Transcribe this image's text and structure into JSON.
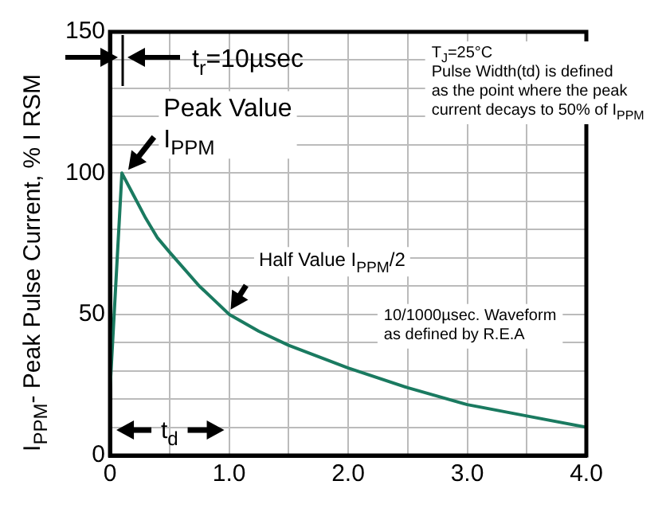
{
  "chart_data": {
    "type": "line",
    "ylabel": "I$_{PPM}$- Peak Pulse Current, % I RSM",
    "x": [
      0,
      0.1,
      0.2,
      0.3,
      0.4,
      0.5,
      0.75,
      1,
      1.25,
      1.5,
      2,
      2.5,
      3,
      3.5,
      4
    ],
    "series": [
      {
        "color": "#1a7a60",
        "values": [
          23,
          100,
          92,
          84,
          77,
          72,
          60,
          50,
          44,
          39,
          31,
          24,
          18,
          14,
          10
        ]
      }
    ],
    "xlim": [
      0,
      4
    ],
    "xticks": [
      0,
      {
        "value": 0.5,
        "label": null
      },
      {
        "value": 1,
        "label": "1.0"
      },
      {
        "value": 1.5,
        "label": null
      },
      {
        "value": 2,
        "label": "2.0"
      },
      {
        "value": 2.5,
        "label": null
      },
      {
        "value": 3,
        "label": "3.0"
      },
      {
        "value": 3.5,
        "label": null
      },
      {
        "value": 4,
        "label": "4.0"
      }
    ],
    "ylim": [
      0,
      150
    ],
    "yticks": [
      0,
      {
        "value": 10,
        "label": null
      },
      {
        "value": 20,
        "label": null
      },
      {
        "value": 30,
        "label": null
      },
      {
        "value": 40,
        "label": null
      },
      50,
      {
        "value": 60,
        "label": null
      },
      {
        "value": 70,
        "label": null
      },
      {
        "value": 80,
        "label": null
      },
      {
        "value": 90,
        "label": null
      },
      100,
      {
        "value": 110,
        "label": null
      },
      {
        "value": 120,
        "label": null
      },
      {
        "value": 130,
        "label": null
      },
      {
        "value": 140,
        "label": null
      },
      150
    ],
    "grid": true,
    "marker": "none",
    "line_style": "solid",
    "legend": false,
    "annotations": [
      "t$_{r}$=10µsec",
      {
        "text": "Peak Value\nI$_{PPM}$",
        "x": 0.1,
        "y": 100
      },
      {
        "text": "Half Value I$_{PPM}$/2",
        "x": 1,
        "y": 50
      },
      "T$_{J}$=25°C\nPulse Width(td) is defined\nas the point where the peak\ncurrent decays to 50% of I$_{PPM}$",
      "10/1000µsec. Waveform\nas defined by R.E.A",
      "t$_{d}$"
    ]
  }
}
